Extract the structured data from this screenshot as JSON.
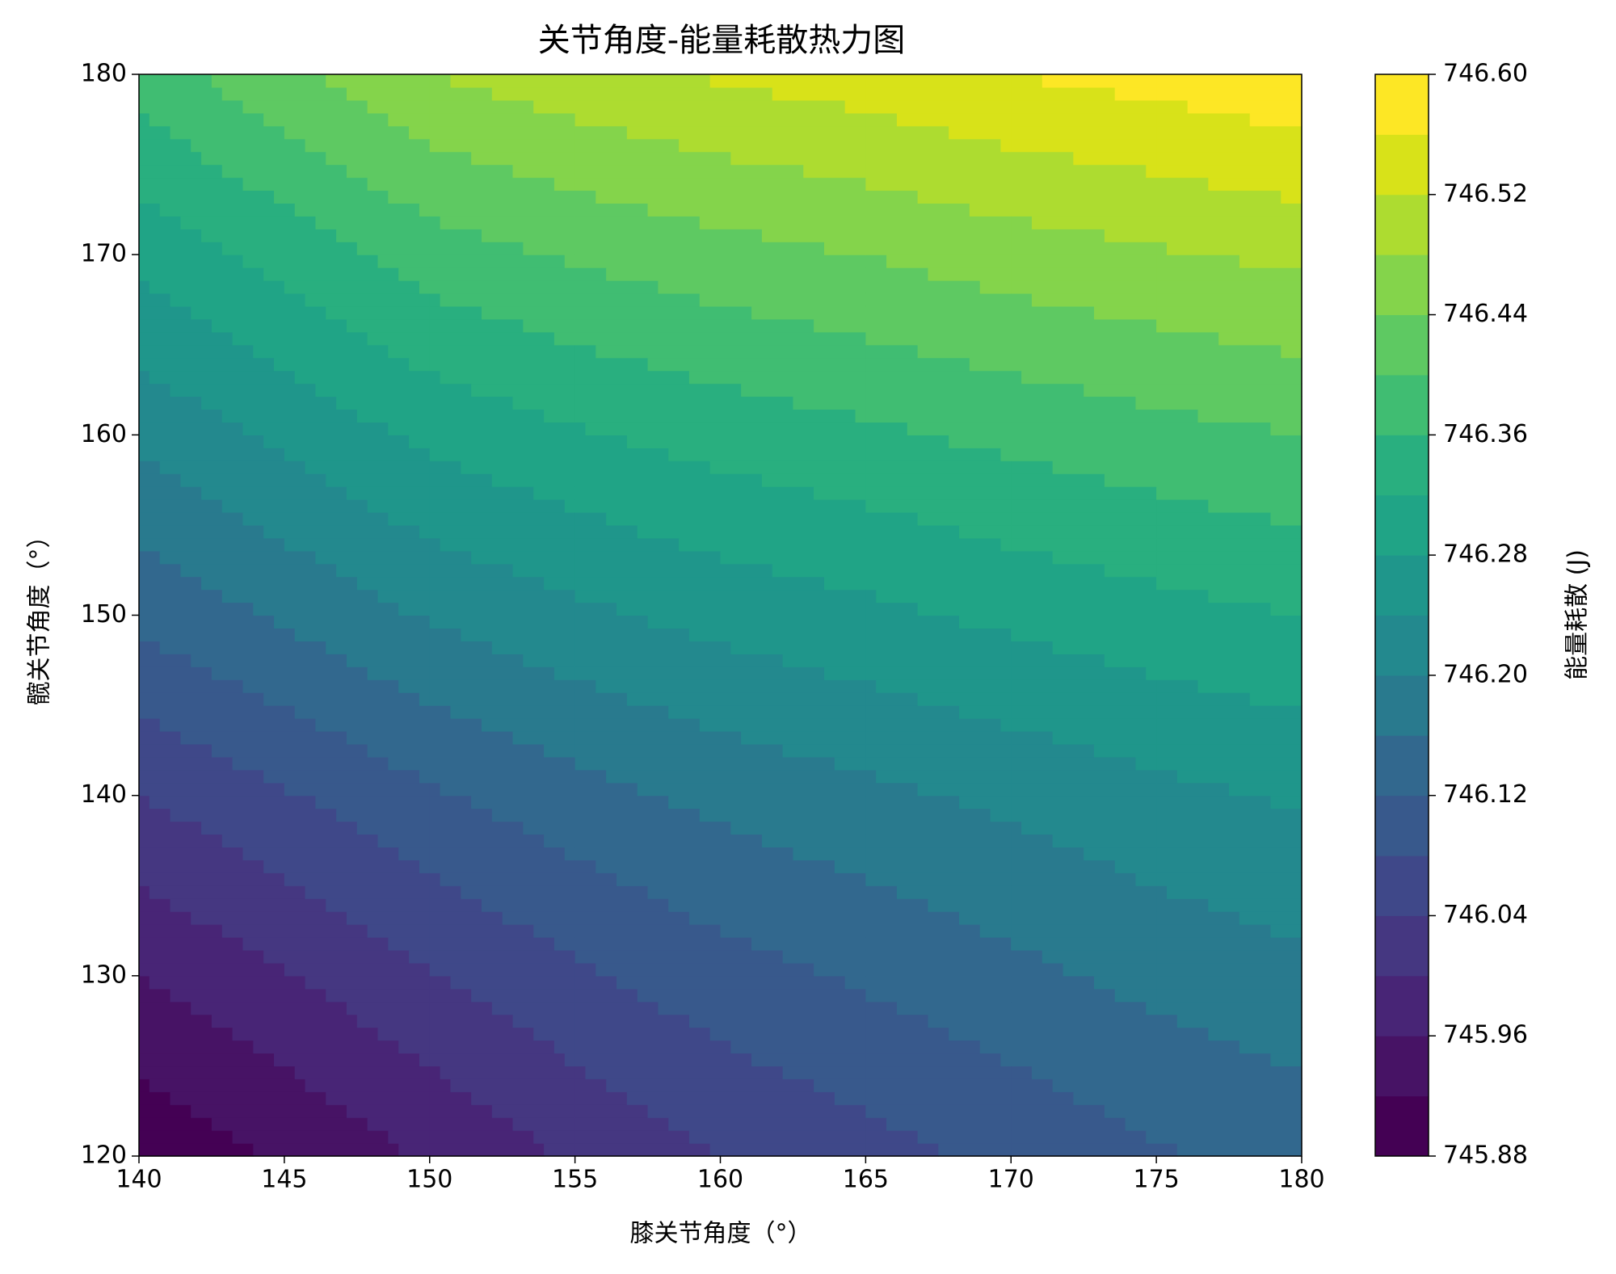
{
  "chart_data": {
    "type": "contourf",
    "title": "关节角度-能量耗散热力图",
    "x_label": "膝关节角度（°）",
    "y_label": "髋关节角度（°）",
    "colorbar_label": "能量耗散 (J)",
    "x": [
      140,
      145,
      150,
      155,
      160,
      165,
      170,
      175,
      180
    ],
    "y": [
      120,
      130,
      140,
      150,
      160,
      170,
      180
    ],
    "z": [
      [
        745.89,
        745.925,
        745.965,
        746.005,
        746.04,
        746.065,
        746.09,
        746.115,
        746.135
      ],
      [
        745.96,
        745.997,
        746.037,
        746.073,
        746.104,
        746.126,
        746.149,
        746.172,
        746.19
      ],
      [
        746.04,
        746.076,
        746.114,
        746.145,
        746.171,
        746.19,
        746.21,
        746.229,
        746.245
      ],
      [
        746.13,
        746.166,
        746.204,
        746.231,
        746.254,
        746.27,
        746.289,
        746.306,
        746.32
      ],
      [
        746.21,
        746.249,
        746.29,
        746.315,
        746.336,
        746.352,
        746.37,
        746.386,
        746.4
      ],
      [
        746.29,
        746.334,
        746.38,
        746.405,
        746.425,
        746.441,
        746.46,
        746.475,
        746.49
      ],
      [
        746.38,
        746.43,
        746.48,
        746.505,
        746.525,
        746.54,
        746.56,
        746.575,
        746.59
      ]
    ],
    "levels": [
      745.88,
      745.92,
      745.96,
      746.0,
      746.04,
      746.08,
      746.12,
      746.16,
      746.2,
      746.24,
      746.28,
      746.32,
      746.36,
      746.4,
      746.44,
      746.48,
      746.52,
      746.56,
      746.6
    ],
    "colors": [
      "#440154",
      "#471365",
      "#482576",
      "#453781",
      "#3f4889",
      "#38598c",
      "#32688e",
      "#297a8e",
      "#23898e",
      "#1f968b",
      "#20a486",
      "#29af7f",
      "#40bd72",
      "#5ec962",
      "#84d44b",
      "#addc30",
      "#d8e219",
      "#fde725"
    ],
    "xlim": [
      140,
      180
    ],
    "ylim": [
      120,
      180
    ],
    "xticks": [
      140,
      145,
      150,
      155,
      160,
      165,
      170,
      175,
      180
    ],
    "yticks": [
      120,
      130,
      140,
      150,
      160,
      170,
      180
    ],
    "clim": [
      745.88,
      746.6
    ],
    "cticks": [
      745.88,
      745.96,
      746.04,
      746.12,
      {
        "value": 746.2,
        "label": "746.20"
      },
      746.28,
      746.36,
      746.44,
      746.52,
      {
        "value": 746.6,
        "label": "746.60"
      }
    ]
  }
}
